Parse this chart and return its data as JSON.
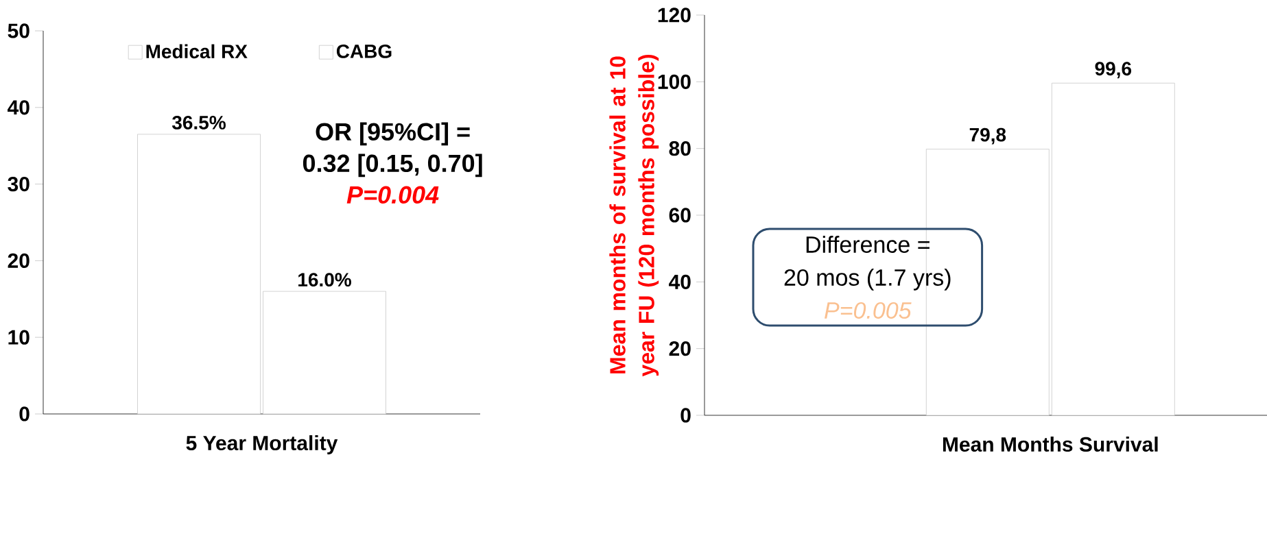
{
  "chart_data": [
    {
      "type": "bar",
      "categories": [
        "5 Year Mortality"
      ],
      "ylim": [
        0,
        50
      ],
      "yticks": [
        0,
        10,
        20,
        30,
        40,
        50
      ],
      "legend": "top",
      "series": [
        {
          "name": "Medical RX",
          "color": "#ffffff",
          "values": [
            36.5
          ],
          "value_labels": [
            "36.5%"
          ]
        },
        {
          "name": "CABG",
          "color": "#ffffff",
          "values": [
            16.0
          ],
          "value_labels": [
            "16.0%"
          ]
        }
      ],
      "annotations": [
        "OR [95%CI] =",
        "0.32 [0.15, 0.70]",
        "P=0.004"
      ]
    },
    {
      "type": "bar",
      "categories": [
        "Mean Months Survival"
      ],
      "ylim": [
        0,
        120
      ],
      "yticks": [
        0,
        20,
        40,
        60,
        80,
        100,
        120
      ],
      "ylabel": "Mean months of survival at 10 year FU (120 months possible)",
      "series": [
        {
          "color": "#ffffff",
          "values": [
            79.8
          ],
          "value_labels": [
            "79,8"
          ]
        },
        {
          "color": "#ffffff",
          "values": [
            99.6
          ],
          "value_labels": [
            "99,6"
          ]
        }
      ],
      "annotations": [
        "Difference =",
        "20 mos (1.7 yrs)",
        "P=0.005"
      ]
    }
  ]
}
